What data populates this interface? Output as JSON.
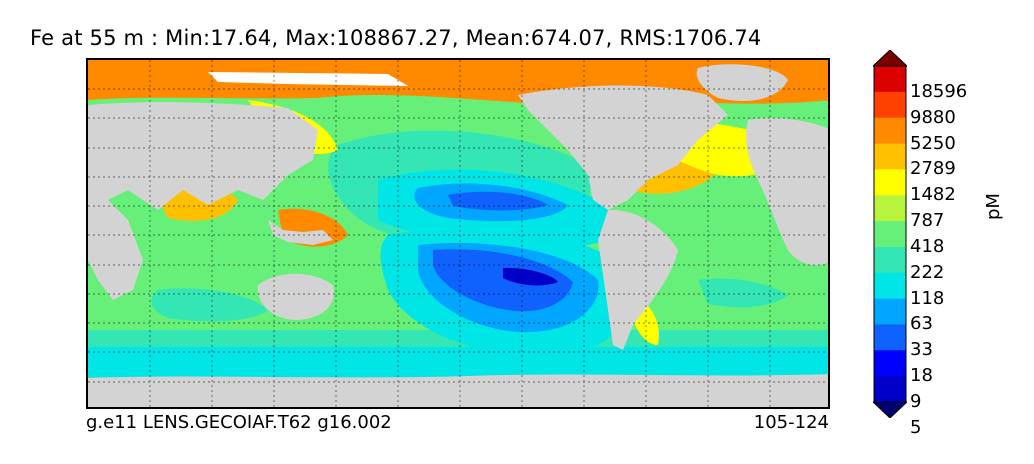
{
  "title": "Fe at 55 m : Min:17.64, Max:108867.27, Mean:674.07, RMS:1706.74",
  "footer": {
    "run_name": "g.e11 LENS.GECOIAF.T62 g16.002",
    "years": "105-124"
  },
  "units": "pM",
  "colorbar": {
    "labels": [
      "18596",
      "9880",
      "5250",
      "2789",
      "1482",
      "787",
      "418",
      "222",
      "118",
      "63",
      "33",
      "18",
      "9",
      "5"
    ],
    "colors": [
      "#7a0000",
      "#dd0000",
      "#ff4000",
      "#ff8a00",
      "#ffc000",
      "#ffff00",
      "#b6f53c",
      "#66f07a",
      "#33e6b3",
      "#00e5e5",
      "#00a6ff",
      "#1062ff",
      "#0000ff",
      "#0000c8",
      "#000070"
    ],
    "extend": "both"
  },
  "map": {
    "land_color": "#d3d3d3",
    "gridlines": "dashed",
    "projection": "global-pacific-centered"
  }
}
